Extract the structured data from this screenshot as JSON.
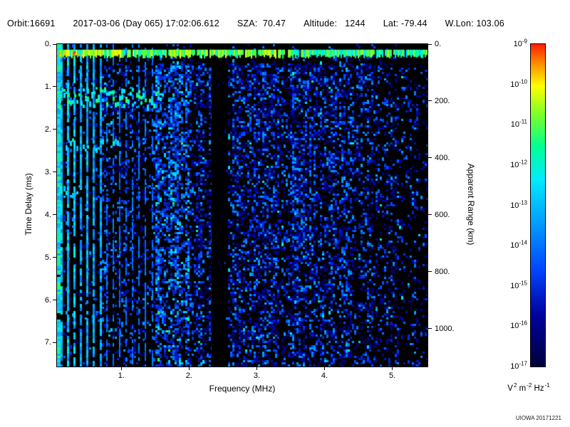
{
  "header": {
    "segments": [
      "Orbit:16691",
      "2017-03-06 (Day 065) 17:02:06.612",
      "SZA:  70.47",
      "Altitude:   1244",
      "Lat: -79.44",
      "W.Lon: 103.06"
    ]
  },
  "chart_data": {
    "type": "heatmap",
    "title": "",
    "xlabel": "Frequency (MHz)",
    "ylabel": "Time Delay (ms)",
    "ylabel_right": "Apparent Range (km)",
    "xlim": [
      0.05,
      5.52
    ],
    "ylim_ms": [
      0.0,
      7.56
    ],
    "grid": false,
    "x_ticks": [
      {
        "v": 1.0,
        "label": "1."
      },
      {
        "v": 2.0,
        "label": "2."
      },
      {
        "v": 3.0,
        "label": "3."
      },
      {
        "v": 4.0,
        "label": "4."
      },
      {
        "v": 5.0,
        "label": "5."
      }
    ],
    "y_ticks_ms": [
      {
        "v": 0.0,
        "label": "0."
      },
      {
        "v": 1.0,
        "label": "1."
      },
      {
        "v": 2.0,
        "label": "2."
      },
      {
        "v": 3.0,
        "label": "3."
      },
      {
        "v": 4.0,
        "label": "4."
      },
      {
        "v": 5.0,
        "label": "5."
      },
      {
        "v": 6.0,
        "label": "6."
      },
      {
        "v": 7.0,
        "label": "7."
      }
    ],
    "range_ticks_km": [
      {
        "v": 0,
        "label": "0."
      },
      {
        "v": 200,
        "label": "200."
      },
      {
        "v": 400,
        "label": "400."
      },
      {
        "v": 600,
        "label": "600."
      },
      {
        "v": 800,
        "label": "800."
      },
      {
        "v": 1000,
        "label": "1000."
      }
    ],
    "km_per_ms": 149.896,
    "colorbar": {
      "base": "10",
      "tick_exponents": [
        -9,
        -10,
        -11,
        -12,
        -13,
        -14,
        -15,
        -16,
        -17
      ],
      "scale_min": 1e-17,
      "scale_max": 1e-09,
      "unit_parts": [
        {
          "base": "V",
          "exp": "2"
        },
        {
          "base": "m",
          "exp": "-2"
        },
        {
          "base": "Hz",
          "exp": "-1"
        }
      ],
      "gradient": [
        [
          "#ff1e00",
          0
        ],
        [
          "#ff8c00",
          6
        ],
        [
          "#ffff00",
          13
        ],
        [
          "#78ff28",
          22
        ],
        [
          "#00ff96",
          32
        ],
        [
          "#00ebff",
          42
        ],
        [
          "#00a0ff",
          55
        ],
        [
          "#0046ff",
          70
        ],
        [
          "#0000a0",
          84
        ],
        [
          "#00003c",
          100
        ]
      ]
    },
    "features": {
      "surface_band_ms": [
        0.13,
        0.32
      ],
      "plasma_harmonic_lines_mhz": {
        "start": 0.1,
        "step": 0.096,
        "count": 15
      },
      "left_edge_bright_column_mhz": [
        0.05,
        0.1
      ],
      "echo_traces": [
        {
          "t_ms": [
            1.0,
            1.45
          ],
          "f_mhz": [
            0.05,
            1.55
          ],
          "intensity": "bright"
        },
        {
          "t_ms": [
            2.2,
            2.5
          ],
          "f_mhz": [
            0.05,
            0.95
          ],
          "intensity": "medium"
        },
        {
          "t_ms": [
            3.25,
            3.55
          ],
          "f_mhz": [
            0.05,
            0.4
          ],
          "intensity": "medium"
        }
      ],
      "blank_band_mhz": [
        2.33,
        2.52
      ],
      "noise_floor": "blue speckle, densest 1.5-4.1 MHz, fading above 4.1 MHz"
    }
  },
  "footer": {
    "credit": "UIOWA 20171221"
  }
}
